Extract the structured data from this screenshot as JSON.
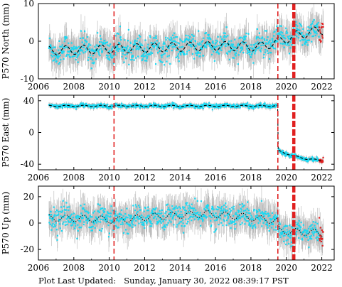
{
  "footer": {
    "label": "Plot Last Updated:",
    "timestamp": "Sunday, January 30, 2022 08:39:17 PST"
  },
  "style": {
    "errorbar_color": "#b8b8b8",
    "point_color": "#19d8f2",
    "recent_point_color": "#e02020",
    "model_color": "#000000",
    "event_line_color": "#e02020"
  },
  "chart_data": [
    {
      "type": "scatter",
      "ylabel": "P570 North (mm)",
      "xlim": [
        2006.0,
        2022.7
      ],
      "ylim": [
        -10,
        10
      ],
      "yticks": [
        -10,
        0,
        10
      ],
      "xticks": [
        2006,
        2008,
        2010,
        2012,
        2014,
        2016,
        2018,
        2020,
        2022
      ],
      "data_start": 2006.6,
      "data_end": 2022.08,
      "event_lines": [
        {
          "x": 2010.27,
          "style": "dashed"
        },
        {
          "x": 2019.52,
          "style": "dashed"
        },
        {
          "x": 2020.42,
          "style": "bold-dashed"
        }
      ],
      "model_line": {
        "style": "dashed",
        "color": "#000000",
        "trend": [
          [
            2006.6,
            -2.5
          ],
          [
            2012.0,
            -1.8
          ],
          [
            2016.0,
            -1.2
          ],
          [
            2018.5,
            -1.5
          ],
          [
            2019.5,
            -0.2
          ],
          [
            2020.5,
            1.5
          ],
          [
            2022.0,
            3.0
          ]
        ],
        "seasonal_amplitude": 1.2
      },
      "series": [
        {
          "values_trend": [
            [
              2006.6,
              -2.5
            ],
            [
              2012.0,
              -1.8
            ],
            [
              2016.0,
              -1.2
            ],
            [
              2018.5,
              -1.5
            ],
            [
              2019.5,
              -0.2
            ],
            [
              2020.5,
              1.5
            ],
            [
              2022.0,
              3.0
            ]
          ],
          "scatter_std": 1.6,
          "errorbar_halfwidth": 3.2
        }
      ],
      "grid": false
    },
    {
      "type": "scatter",
      "ylabel": "P570 East (mm)",
      "xlim": [
        2006.0,
        2022.7
      ],
      "ylim": [
        -47,
        47
      ],
      "yticks": [
        -40,
        0,
        40
      ],
      "xticks": [
        2006,
        2008,
        2010,
        2012,
        2014,
        2016,
        2018,
        2020,
        2022
      ],
      "data_start": 2006.6,
      "data_end": 2022.08,
      "event_lines": [
        {
          "x": 2010.27,
          "style": "dashed"
        },
        {
          "x": 2019.52,
          "style": "dashed"
        },
        {
          "x": 2020.42,
          "style": "bold-dashed"
        }
      ],
      "model_line": {
        "style": "dashed",
        "color": "#000000",
        "trend": [
          [
            2006.6,
            33.5
          ],
          [
            2019.52,
            33.5
          ],
          [
            2019.53,
            -23.0
          ],
          [
            2020.5,
            -30.0
          ],
          [
            2021.2,
            -33.5
          ],
          [
            2022.0,
            -35.0
          ]
        ],
        "seasonal_amplitude": 0.8
      },
      "series": [
        {
          "values_trend": [
            [
              2006.6,
              33.5
            ],
            [
              2019.52,
              33.5
            ],
            [
              2019.53,
              -23.0
            ],
            [
              2020.5,
              -30.0
            ],
            [
              2021.2,
              -33.5
            ],
            [
              2022.0,
              -35.0
            ]
          ],
          "scatter_std": 1.2,
          "errorbar_halfwidth": 2.5
        }
      ],
      "grid": false
    },
    {
      "type": "scatter",
      "ylabel": "P570 Up (mm)",
      "xlim": [
        2006.0,
        2022.7
      ],
      "ylim": [
        -28,
        28
      ],
      "yticks": [
        -20,
        0,
        20
      ],
      "xticks": [
        2006,
        2008,
        2010,
        2012,
        2014,
        2016,
        2018,
        2020,
        2022
      ],
      "xtick_labels": [
        "2006",
        "2008",
        "2010",
        "2012",
        "2014",
        "2016",
        "2018",
        "2020",
        "2022"
      ],
      "data_start": 2006.6,
      "data_end": 2022.08,
      "event_lines": [
        {
          "x": 2010.27,
          "style": "dashed"
        },
        {
          "x": 2019.52,
          "style": "dashed"
        },
        {
          "x": 2020.42,
          "style": "bold-dashed"
        }
      ],
      "model_line": {
        "style": "dotted",
        "color": "#000000",
        "trend": [
          [
            2006.6,
            4.0
          ],
          [
            2009.5,
            3.0
          ],
          [
            2010.3,
            2.0
          ],
          [
            2012.5,
            5.0
          ],
          [
            2015.5,
            7.0
          ],
          [
            2017.5,
            5.0
          ],
          [
            2019.5,
            1.5
          ],
          [
            2019.6,
            -6.0
          ],
          [
            2022.0,
            -7.5
          ]
        ],
        "seasonal_amplitude": 2.5
      },
      "series": [
        {
          "values_trend": [
            [
              2006.6,
              4.0
            ],
            [
              2009.5,
              3.0
            ],
            [
              2010.3,
              2.0
            ],
            [
              2012.5,
              5.0
            ],
            [
              2015.5,
              7.0
            ],
            [
              2017.5,
              5.0
            ],
            [
              2019.5,
              1.5
            ],
            [
              2019.6,
              -6.0
            ],
            [
              2022.0,
              -7.5
            ]
          ],
          "scatter_std": 4.5,
          "errorbar_halfwidth": 9.0
        }
      ],
      "grid": false
    }
  ]
}
